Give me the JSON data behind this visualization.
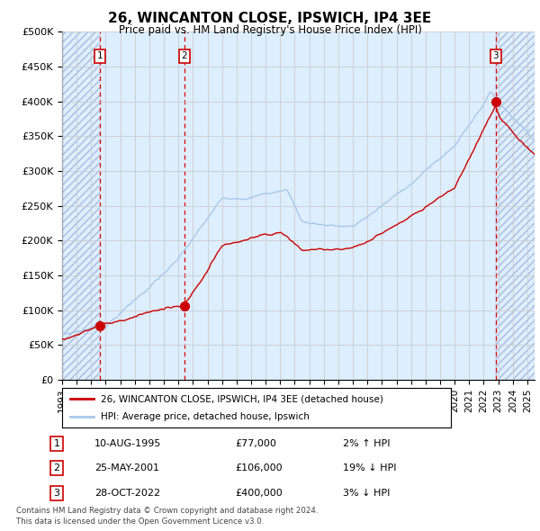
{
  "title": "26, WINCANTON CLOSE, IPSWICH, IP4 3EE",
  "subtitle": "Price paid vs. HM Land Registry's House Price Index (HPI)",
  "ylim": [
    0,
    500000
  ],
  "yticks": [
    0,
    50000,
    100000,
    150000,
    200000,
    250000,
    300000,
    350000,
    400000,
    450000,
    500000
  ],
  "ytick_labels": [
    "£0",
    "£50K",
    "£100K",
    "£150K",
    "£200K",
    "£250K",
    "£300K",
    "£350K",
    "£400K",
    "£450K",
    "£500K"
  ],
  "hpi_color": "#a8c8e8",
  "price_color": "#cc0000",
  "grid_color": "#cccccc",
  "shade_color": "#ddeeff",
  "hatch_color": "#aabbdd",
  "dashed_line_color": "#dd0000",
  "legend_label_red": "26, WINCANTON CLOSE, IPSWICH, IP4 3EE (detached house)",
  "legend_label_blue": "HPI: Average price, detached house, Ipswich",
  "sales": [
    {
      "id": 1,
      "date_str": "10-AUG-1995",
      "date_num": 1995.61,
      "price": 77000,
      "note": "2% ↑ HPI"
    },
    {
      "id": 2,
      "date_str": "25-MAY-2001",
      "date_num": 2001.4,
      "price": 106000,
      "note": "19% ↓ HPI"
    },
    {
      "id": 3,
      "date_str": "28-OCT-2022",
      "date_num": 2022.82,
      "price": 400000,
      "note": "3% ↓ HPI"
    }
  ],
  "footer_line1": "Contains HM Land Registry data © Crown copyright and database right 2024.",
  "footer_line2": "This data is licensed under the Open Government Licence v3.0.",
  "xlim_start": 1993.0,
  "xlim_end": 2025.5,
  "background_color": "#ffffff"
}
